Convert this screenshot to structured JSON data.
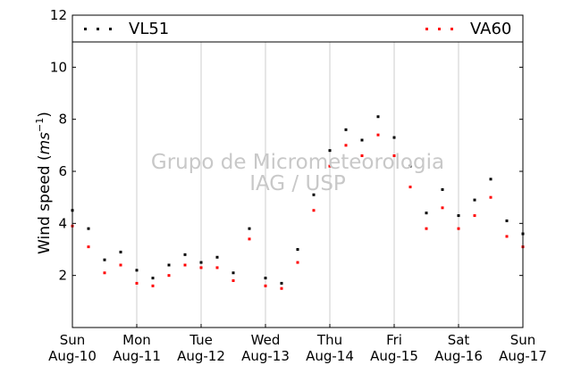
{
  "chart_data": {
    "type": "scatter",
    "ylabel": "Wind speed (m s^-1)",
    "ylabel_main": "Wind speed (",
    "ylabel_unit": "ms",
    "ylabel_exp": "−1",
    "ylabel_close": ")",
    "xlabel": "",
    "ylim": [
      0,
      12
    ],
    "xlim": [
      "2014-08-10",
      "2014-08-17"
    ],
    "grid": "vertical",
    "legend_position": "top",
    "y_ticks": [
      "2",
      "4",
      "6",
      "8",
      "10",
      "12"
    ],
    "x_ticks": [
      {
        "day": "Sun",
        "date": "Aug-10"
      },
      {
        "day": "Mon",
        "date": "Aug-11"
      },
      {
        "day": "Tue",
        "date": "Aug-12"
      },
      {
        "day": "Wed",
        "date": "Aug-13"
      },
      {
        "day": "Thu",
        "date": "Aug-14"
      },
      {
        "day": "Fri",
        "date": "Aug-15"
      },
      {
        "day": "Sat",
        "date": "Aug-16"
      },
      {
        "day": "Sun",
        "date": "Aug-17"
      }
    ],
    "series": [
      {
        "name": "VL51",
        "color": "#000000",
        "marker": "square",
        "x": [
          "2014-08-10",
          "2014-08-10 06:00",
          "2014-08-10 12:00",
          "2014-08-10 18:00",
          "2014-08-11",
          "2014-08-11 06:00",
          "2014-08-11 12:00",
          "2014-08-11 18:00",
          "2014-08-12",
          "2014-08-12 06:00",
          "2014-08-12 12:00",
          "2014-08-12 18:00",
          "2014-08-13",
          "2014-08-13 06:00",
          "2014-08-13 12:00",
          "2014-08-13 18:00",
          "2014-08-14",
          "2014-08-14 06:00",
          "2014-08-14 12:00",
          "2014-08-14 18:00",
          "2014-08-15",
          "2014-08-15 06:00",
          "2014-08-15 12:00",
          "2014-08-15 18:00",
          "2014-08-16",
          "2014-08-16 06:00",
          "2014-08-16 12:00",
          "2014-08-16 18:00",
          "2014-08-17"
        ],
        "y": [
          4.5,
          3.8,
          2.6,
          2.9,
          2.2,
          1.9,
          2.4,
          2.8,
          2.5,
          2.7,
          2.1,
          3.8,
          1.9,
          1.7,
          3.0,
          5.1,
          6.8,
          7.6,
          7.2,
          8.1,
          7.3,
          6.2,
          4.4,
          5.3,
          4.3,
          4.9,
          5.7,
          4.1,
          3.6
        ]
      },
      {
        "name": "VA60",
        "color": "#ff0000",
        "marker": "square",
        "x": [
          "2014-08-10",
          "2014-08-10 06:00",
          "2014-08-10 12:00",
          "2014-08-10 18:00",
          "2014-08-11",
          "2014-08-11 06:00",
          "2014-08-11 12:00",
          "2014-08-11 18:00",
          "2014-08-12",
          "2014-08-12 06:00",
          "2014-08-12 12:00",
          "2014-08-12 18:00",
          "2014-08-13",
          "2014-08-13 06:00",
          "2014-08-13 12:00",
          "2014-08-13 18:00",
          "2014-08-14",
          "2014-08-14 06:00",
          "2014-08-14 12:00",
          "2014-08-14 18:00",
          "2014-08-15",
          "2014-08-15 06:00",
          "2014-08-15 12:00",
          "2014-08-15 18:00",
          "2014-08-16",
          "2014-08-16 06:00",
          "2014-08-16 12:00",
          "2014-08-16 18:00",
          "2014-08-17"
        ],
        "y": [
          3.9,
          3.1,
          2.1,
          2.4,
          1.7,
          1.6,
          2.0,
          2.4,
          2.3,
          2.3,
          1.8,
          3.4,
          1.6,
          1.5,
          2.5,
          4.5,
          6.2,
          7.0,
          6.6,
          7.4,
          6.6,
          5.4,
          3.8,
          4.6,
          3.8,
          4.3,
          5.0,
          3.5,
          3.1
        ]
      }
    ],
    "watermark_lines": [
      "Grupo de Micrometeorologia",
      "IAG / USP"
    ]
  }
}
